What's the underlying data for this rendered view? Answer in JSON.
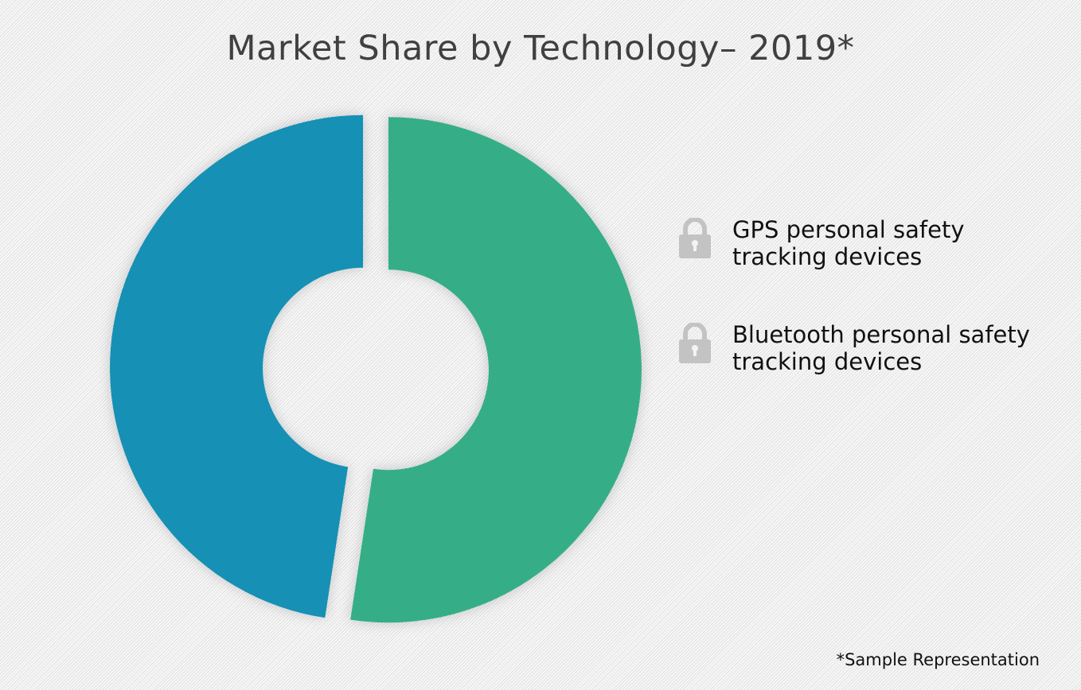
{
  "chart_data": {
    "type": "pie",
    "variant": "donut",
    "exploded": true,
    "title": "Market Share by Technology– 2019*",
    "categories": [
      "GPS personal safety tracking devices",
      "Bluetooth personal safety tracking devices"
    ],
    "values": [
      52.4,
      47.6
    ],
    "colors": [
      "#35ae87",
      "#1390b5"
    ],
    "legend_icon": "padlock-icon",
    "legend_icon_color": "#c3c3c3",
    "legend_position": "right",
    "note": "*Sample Representation"
  }
}
